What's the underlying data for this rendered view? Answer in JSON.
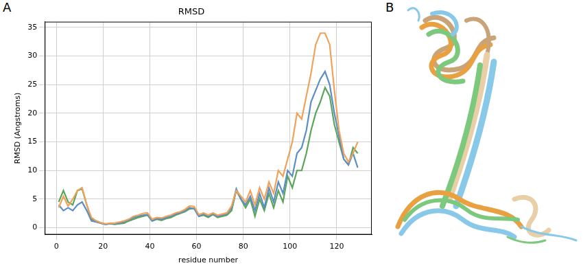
{
  "panel_labels": [
    "A",
    "B"
  ],
  "chart_data": {
    "type": "line",
    "title": "RMSD",
    "x_label": "residue number",
    "y_label": "RMSD (Angstroms)",
    "grid": true,
    "xlim": [
      -5,
      135
    ],
    "xticks": [
      0,
      20,
      40,
      60,
      80,
      100,
      120
    ],
    "ylim": [
      -1.2,
      36
    ],
    "yticks": [
      0,
      5,
      10,
      15,
      20,
      25,
      30,
      35
    ],
    "x": [
      1,
      3,
      5,
      7,
      9,
      11,
      13,
      15,
      17,
      19,
      21,
      23,
      25,
      27,
      29,
      31,
      33,
      35,
      37,
      39,
      41,
      43,
      45,
      47,
      49,
      51,
      53,
      55,
      57,
      59,
      61,
      63,
      65,
      67,
      69,
      71,
      73,
      75,
      77,
      79,
      81,
      83,
      85,
      87,
      89,
      91,
      93,
      95,
      97,
      99,
      101,
      103,
      105,
      107,
      109,
      111,
      113,
      115,
      117,
      119,
      121,
      123,
      125,
      127,
      129
    ],
    "series": [
      {
        "color": "#f0a15a",
        "values": [
          3.5,
          5.5,
          3.8,
          5,
          6.5,
          7,
          4,
          1.8,
          1.2,
          0.9,
          0.7,
          0.8,
          0.8,
          1,
          1.2,
          1.5,
          2,
          2.2,
          2.5,
          2.6,
          1.5,
          1.8,
          1.7,
          2,
          2.2,
          2.6,
          2.8,
          3.2,
          3.8,
          3.7,
          2.3,
          2.6,
          2.2,
          2.6,
          2.2,
          2.4,
          2.6,
          3.8,
          6.5,
          5.5,
          4.5,
          6.5,
          4,
          7,
          5,
          8,
          6,
          10,
          9,
          12,
          15,
          20,
          19,
          23,
          27,
          32,
          34,
          34,
          32,
          24,
          17,
          13,
          11.5,
          13,
          15
        ]
      },
      {
        "color": "#5b8ec4",
        "values": [
          4,
          3,
          3.5,
          3,
          4,
          4.5,
          3,
          1.2,
          1,
          0.8,
          0.6,
          0.7,
          0.7,
          0.8,
          1,
          1.4,
          1.8,
          2,
          2.2,
          2.3,
          1.2,
          1.6,
          1.5,
          1.8,
          2,
          2.4,
          2.6,
          3,
          3.5,
          3.3,
          2,
          2.4,
          2,
          2.4,
          2,
          2.2,
          2.4,
          3.5,
          6.8,
          5,
          4,
          5.5,
          3,
          6,
          3.5,
          7,
          4.5,
          8,
          6,
          10,
          9,
          13,
          14,
          17,
          22,
          24,
          26,
          27.3,
          25,
          20,
          16,
          12,
          11,
          13,
          10.5
        ]
      },
      {
        "color": "#5aa55a",
        "values": [
          4.5,
          6.5,
          4.5,
          4,
          6.5,
          6.8,
          4,
          1.5,
          1.2,
          0.8,
          0.6,
          0.7,
          0.6,
          0.7,
          0.8,
          1.2,
          1.5,
          1.8,
          2,
          2.2,
          1.2,
          1.5,
          1.3,
          1.6,
          1.8,
          2.2,
          2.5,
          2.8,
          3.3,
          3.4,
          2,
          2.2,
          1.8,
          2.3,
          1.8,
          2,
          2.2,
          3,
          6.5,
          5,
          3.5,
          5,
          2,
          5,
          3,
          6,
          3.5,
          6.5,
          4.5,
          9,
          7,
          10,
          10,
          13,
          17,
          20,
          22,
          24.5,
          23,
          18,
          15,
          12,
          11,
          14,
          13
        ]
      }
    ]
  }
}
